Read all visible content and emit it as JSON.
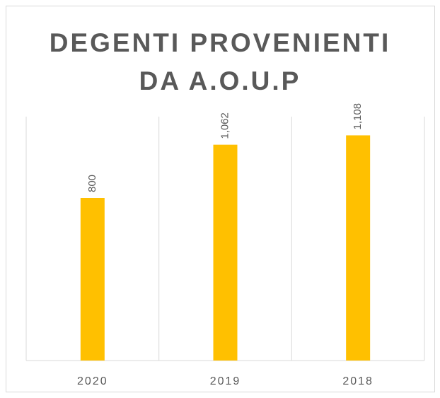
{
  "chart_data": {
    "type": "bar",
    "title": "DEGENTI PROVENIENTI DA A.O.U.P",
    "categories": [
      "2020",
      "2019",
      "2018"
    ],
    "values": [
      800,
      1062,
      1108
    ],
    "value_labels": [
      "800",
      "1,062",
      "1,108"
    ],
    "color": "#ffc000",
    "ylim": [
      0,
      1200
    ]
  }
}
